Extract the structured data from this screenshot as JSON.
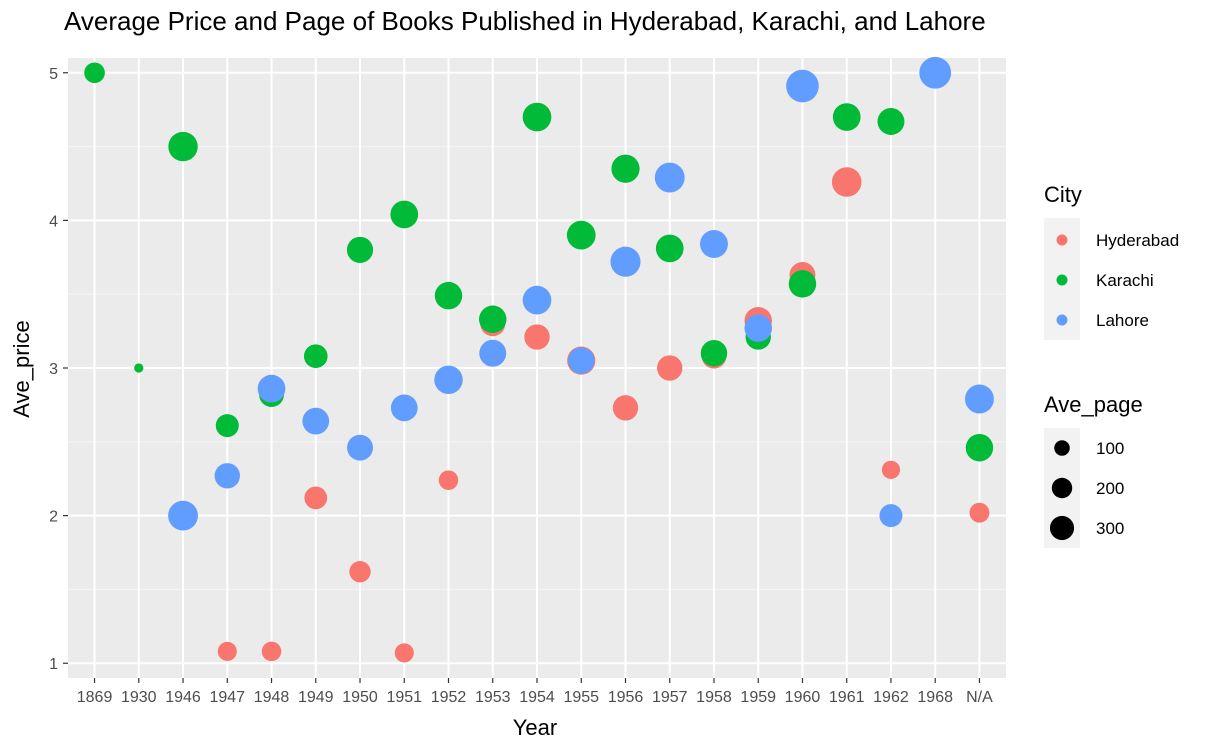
{
  "chart_data": {
    "type": "scatter",
    "title": "Average Price and Page of Books Published in Hyderabad, Karachi, and Lahore",
    "xlabel": "Year",
    "ylabel": "Ave_price",
    "categories": [
      "1869",
      "1930",
      "1946",
      "1947",
      "1948",
      "1949",
      "1950",
      "1951",
      "1952",
      "1953",
      "1954",
      "1955",
      "1956",
      "1957",
      "1958",
      "1959",
      "1960",
      "1961",
      "1962",
      "1968",
      "N/A"
    ],
    "y_ticks": [
      1,
      2,
      3,
      4,
      5
    ],
    "ylim": [
      0.9,
      5.1
    ],
    "grid": true,
    "color_legend": {
      "title": "City",
      "position": "right"
    },
    "size_legend": {
      "title": "Ave_page",
      "position": "right",
      "entries": [
        100,
        200,
        300
      ]
    },
    "size_range_pages": [
      10,
      350
    ],
    "series": [
      {
        "name": "Hyderabad",
        "color": "#F8766D",
        "points": [
          {
            "x": "1947",
            "y": 1.08,
            "size": 90
          },
          {
            "x": "1948",
            "y": 1.08,
            "size": 95
          },
          {
            "x": "1949",
            "y": 2.12,
            "size": 140
          },
          {
            "x": "1950",
            "y": 1.62,
            "size": 120
          },
          {
            "x": "1951",
            "y": 1.07,
            "size": 90
          },
          {
            "x": "1952",
            "y": 2.24,
            "size": 95
          },
          {
            "x": "1953",
            "y": 3.3,
            "size": 180
          },
          {
            "x": "1954",
            "y": 3.21,
            "size": 185
          },
          {
            "x": "1955",
            "y": 3.05,
            "size": 240
          },
          {
            "x": "1956",
            "y": 2.73,
            "size": 185
          },
          {
            "x": "1957",
            "y": 3.0,
            "size": 185
          },
          {
            "x": "1958",
            "y": 3.08,
            "size": 175
          },
          {
            "x": "1959",
            "y": 3.32,
            "size": 225
          },
          {
            "x": "1960",
            "y": 3.63,
            "size": 195
          },
          {
            "x": "1961",
            "y": 4.26,
            "size": 270
          },
          {
            "x": "1962",
            "y": 2.31,
            "size": 80
          },
          {
            "x": "N/A",
            "y": 2.02,
            "size": 100
          }
        ]
      },
      {
        "name": "Karachi",
        "color": "#00BA38",
        "points": [
          {
            "x": "1869",
            "y": 5.0,
            "size": 110
          },
          {
            "x": "1930",
            "y": 3.0,
            "size": 15
          },
          {
            "x": "1946",
            "y": 4.5,
            "size": 265
          },
          {
            "x": "1947",
            "y": 2.61,
            "size": 145
          },
          {
            "x": "1948",
            "y": 2.82,
            "size": 175
          },
          {
            "x": "1949",
            "y": 3.08,
            "size": 155
          },
          {
            "x": "1950",
            "y": 3.8,
            "size": 200
          },
          {
            "x": "1951",
            "y": 4.04,
            "size": 230
          },
          {
            "x": "1952",
            "y": 3.49,
            "size": 225
          },
          {
            "x": "1953",
            "y": 3.33,
            "size": 225
          },
          {
            "x": "1954",
            "y": 4.7,
            "size": 250
          },
          {
            "x": "1955",
            "y": 3.9,
            "size": 250
          },
          {
            "x": "1956",
            "y": 4.35,
            "size": 240
          },
          {
            "x": "1957",
            "y": 3.81,
            "size": 230
          },
          {
            "x": "1958",
            "y": 3.1,
            "size": 205
          },
          {
            "x": "1959",
            "y": 3.21,
            "size": 185
          },
          {
            "x": "1960",
            "y": 3.57,
            "size": 225
          },
          {
            "x": "1961",
            "y": 4.7,
            "size": 230
          },
          {
            "x": "1962",
            "y": 4.67,
            "size": 215
          },
          {
            "x": "N/A",
            "y": 2.46,
            "size": 225
          }
        ]
      },
      {
        "name": "Lahore",
        "color": "#619CFF",
        "points": [
          {
            "x": "1946",
            "y": 2.0,
            "size": 275
          },
          {
            "x": "1947",
            "y": 2.27,
            "size": 185
          },
          {
            "x": "1948",
            "y": 2.86,
            "size": 230
          },
          {
            "x": "1949",
            "y": 2.64,
            "size": 210
          },
          {
            "x": "1950",
            "y": 2.46,
            "size": 195
          },
          {
            "x": "1951",
            "y": 2.73,
            "size": 210
          },
          {
            "x": "1952",
            "y": 2.92,
            "size": 245
          },
          {
            "x": "1953",
            "y": 3.1,
            "size": 215
          },
          {
            "x": "1954",
            "y": 3.46,
            "size": 250
          },
          {
            "x": "1955",
            "y": 3.05,
            "size": 205
          },
          {
            "x": "1956",
            "y": 3.72,
            "size": 280
          },
          {
            "x": "1957",
            "y": 4.29,
            "size": 275
          },
          {
            "x": "1958",
            "y": 3.84,
            "size": 235
          },
          {
            "x": "1959",
            "y": 3.27,
            "size": 225
          },
          {
            "x": "1960",
            "y": 4.91,
            "size": 340
          },
          {
            "x": "1962",
            "y": 2.0,
            "size": 145
          },
          {
            "x": "1968",
            "y": 5.0,
            "size": 320
          },
          {
            "x": "N/A",
            "y": 2.79,
            "size": 255
          }
        ]
      }
    ]
  }
}
